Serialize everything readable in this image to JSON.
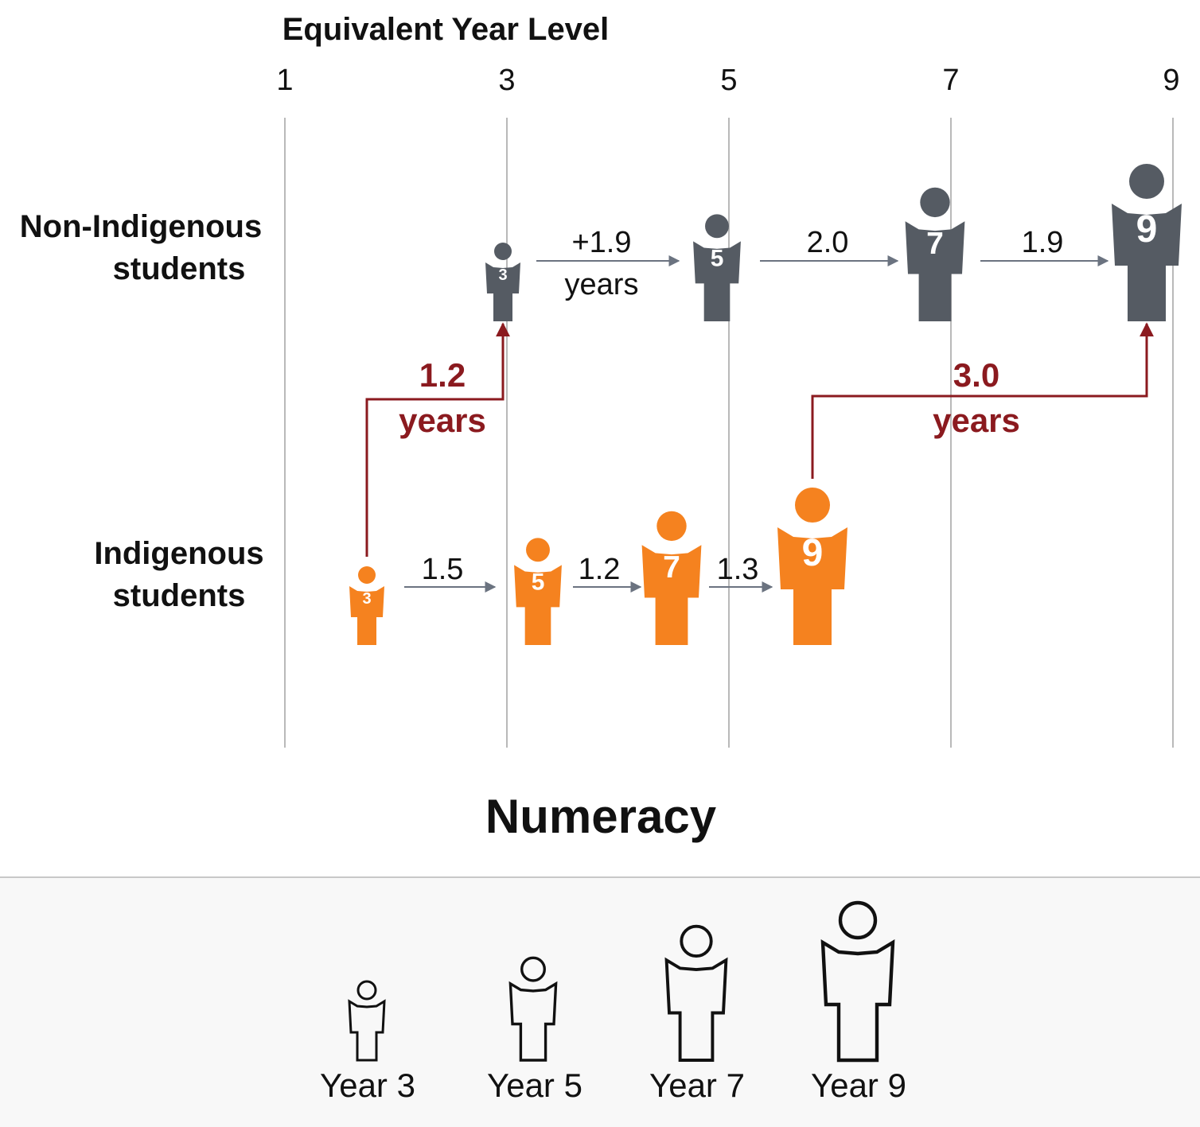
{
  "axis": {
    "title": "Equivalent Year Level",
    "ticks": [
      "1",
      "3",
      "5",
      "7",
      "9"
    ]
  },
  "groups": {
    "non_indigenous": {
      "line1": "Non-Indigenous",
      "line2": "students"
    },
    "indigenous": {
      "line1": "Indigenous",
      "line2": "students"
    }
  },
  "chart_data": {
    "type": "diagram",
    "title": "Numeracy",
    "axis_label": "Equivalent Year Level",
    "axis_ticks": [
      1,
      3,
      5,
      7,
      9
    ],
    "non_indigenous": {
      "year_levels": [
        {
          "year": "3",
          "equivalent_year_level": 3.0
        },
        {
          "year": "5",
          "equivalent_year_level": 5.0
        },
        {
          "year": "7",
          "equivalent_year_level": 7.0
        },
        {
          "year": "9",
          "equivalent_year_level": 8.9
        }
      ],
      "progress": [
        "+1.9",
        "2.0",
        "1.9"
      ],
      "progress_unit": "years"
    },
    "indigenous": {
      "year_levels": [
        {
          "year": "3",
          "equivalent_year_level": 1.8
        },
        {
          "year": "5",
          "equivalent_year_level": 3.3
        },
        {
          "year": "7",
          "equivalent_year_level": 4.5
        },
        {
          "year": "9",
          "equivalent_year_level": 5.8
        }
      ],
      "progress": [
        "1.5",
        "1.2",
        "1.3"
      ]
    },
    "gaps": [
      {
        "value": "1.2",
        "unit": "years",
        "at_year": "3"
      },
      {
        "value": "3.0",
        "unit": "years",
        "at_year": "9"
      }
    ]
  },
  "legend": {
    "items": [
      "Year 3",
      "Year 5",
      "Year 7",
      "Year 9"
    ]
  },
  "colors": {
    "non_indigenous": "#555b63",
    "indigenous": "#f5821f",
    "gap": "#8b1a1f",
    "gridline": "#b9b9b9",
    "arrow": "#6b7380",
    "legend_bg": "#f8f8f8"
  }
}
